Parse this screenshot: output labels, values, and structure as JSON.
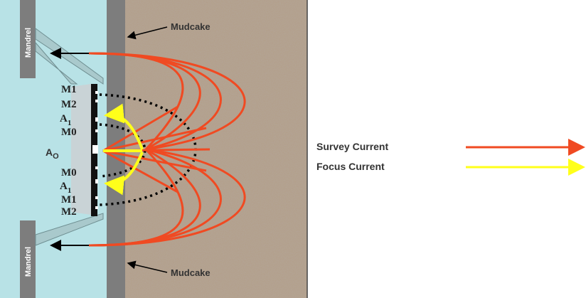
{
  "mandrel_labels": [
    "Mandrel",
    "Mandrel"
  ],
  "mudcake_labels": [
    "Mudcake",
    "Mudcake"
  ],
  "electrodes": [
    {
      "text": "M1"
    },
    {
      "text": "M2"
    },
    {
      "text": "A",
      "sub": "1"
    },
    {
      "text": "M0"
    },
    {
      "text": "A",
      "sub": "O"
    },
    {
      "text": "M0"
    },
    {
      "text": "A",
      "sub": "1"
    },
    {
      "text": "M1"
    },
    {
      "text": "M2"
    }
  ],
  "legend": [
    {
      "name": "Survey Current",
      "color": "#f04a22"
    },
    {
      "name": "Focus Current",
      "color": "#ffff1a"
    }
  ]
}
